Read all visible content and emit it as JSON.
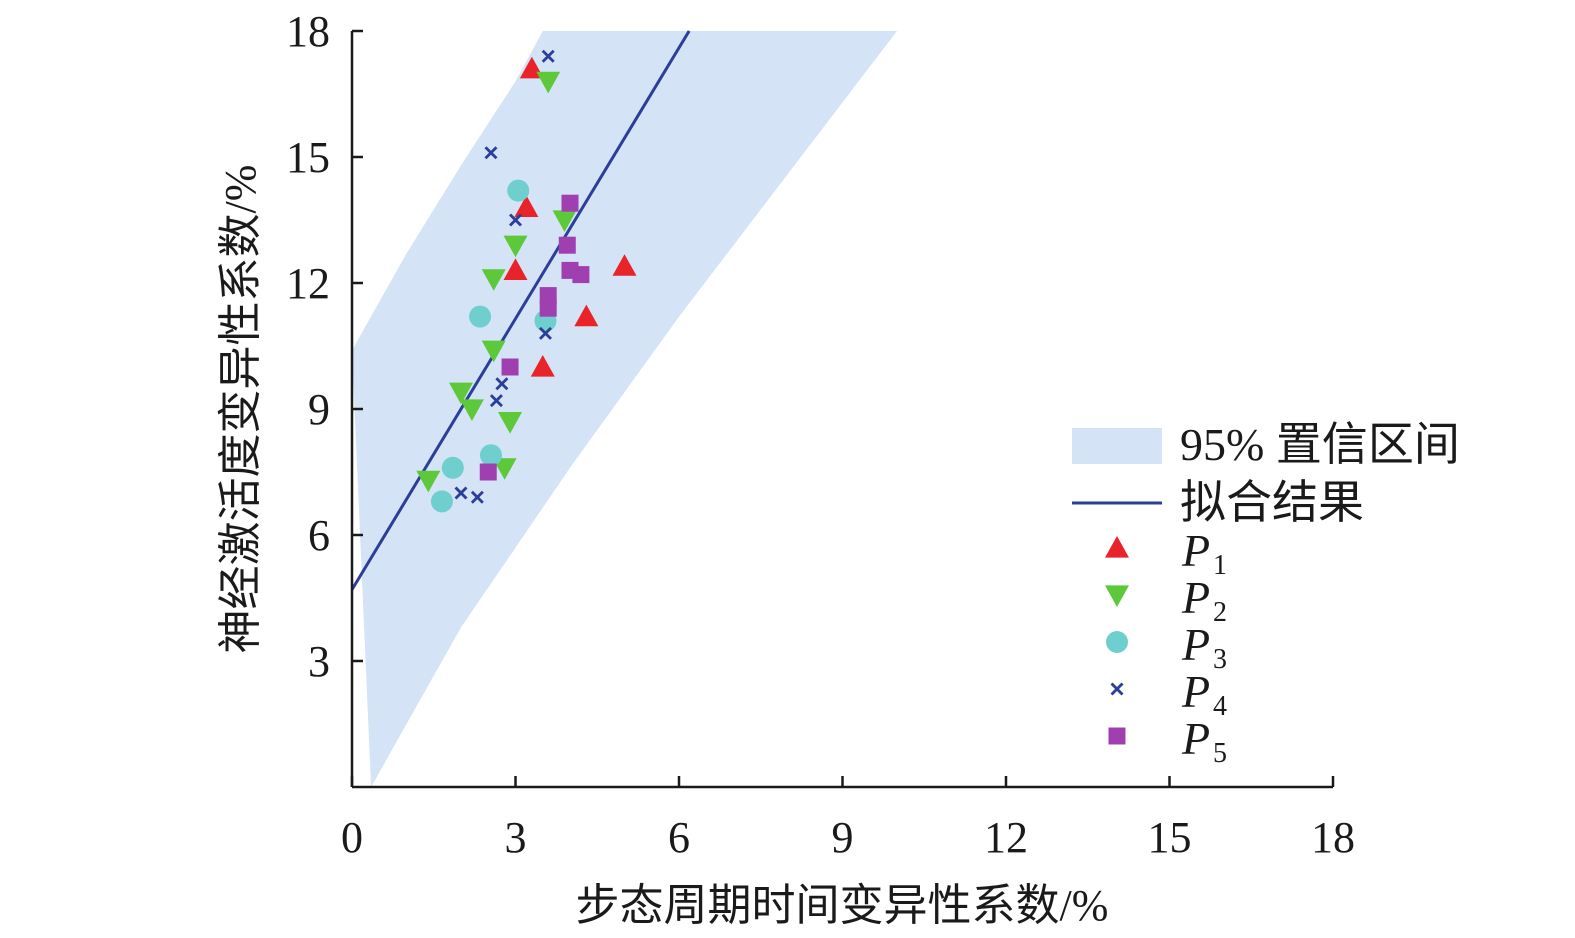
{
  "chart_data": {
    "type": "scatter",
    "xlabel": "步态周期时间变异性系数/%",
    "ylabel": "神经激活度变异性系数/%",
    "xlim": [
      0,
      18
    ],
    "ylim": [
      0,
      18
    ],
    "x_ticks": [
      0,
      3,
      6,
      9,
      12,
      15,
      18
    ],
    "y_ticks": [
      3,
      6,
      9,
      12,
      15,
      18
    ],
    "fit_line": {
      "label": "拟合结果",
      "slope": 2.15,
      "intercept": 4.7,
      "color": "#2b3f9a"
    },
    "confidence_band": {
      "label": "95% 置信区间",
      "color": "#d4e3f5",
      "upper": [
        [
          0,
          10.4
        ],
        [
          1,
          12.7
        ],
        [
          2,
          14.8
        ],
        [
          3,
          16.8
        ],
        [
          3.5,
          18
        ]
      ],
      "lower": [
        [
          0.35,
          0
        ],
        [
          1,
          1.5
        ],
        [
          2,
          3.8
        ],
        [
          3,
          5.7
        ],
        [
          4,
          7.6
        ],
        [
          5,
          9.4
        ],
        [
          6,
          11.2
        ],
        [
          7,
          12.9
        ],
        [
          8,
          14.6
        ],
        [
          9,
          16.3
        ],
        [
          10,
          18
        ]
      ]
    },
    "legend_position": "right",
    "series": [
      {
        "name": "P",
        "sub": "1",
        "marker": "triangle-up",
        "color": "#e8232a",
        "points": [
          [
            3.3,
            17.1
          ],
          [
            3.2,
            13.8
          ],
          [
            3.0,
            12.3
          ],
          [
            5.0,
            12.4
          ],
          [
            4.3,
            11.2
          ],
          [
            3.5,
            10.0
          ]
        ]
      },
      {
        "name": "P",
        "sub": "2",
        "marker": "triangle-down",
        "color": "#5cc83a",
        "points": [
          [
            3.6,
            16.8
          ],
          [
            3.9,
            13.5
          ],
          [
            3.0,
            12.9
          ],
          [
            2.6,
            12.1
          ],
          [
            2.6,
            10.4
          ],
          [
            2.0,
            9.4
          ],
          [
            2.2,
            9.0
          ],
          [
            2.9,
            8.7
          ],
          [
            2.8,
            7.6
          ],
          [
            1.4,
            7.3
          ]
        ]
      },
      {
        "name": "P",
        "sub": "3",
        "marker": "circle",
        "color": "#6fcfcf",
        "points": [
          [
            3.05,
            14.2
          ],
          [
            2.35,
            11.2
          ],
          [
            3.55,
            11.1
          ],
          [
            2.55,
            7.9
          ],
          [
            1.85,
            7.6
          ],
          [
            1.65,
            6.8
          ]
        ]
      },
      {
        "name": "P",
        "sub": "4",
        "marker": "x",
        "color": "#2b3f9a",
        "points": [
          [
            3.6,
            17.4
          ],
          [
            2.55,
            15.1
          ],
          [
            3.0,
            13.5
          ],
          [
            3.55,
            10.8
          ],
          [
            2.75,
            9.6
          ],
          [
            2.65,
            9.2
          ],
          [
            2.0,
            7.0
          ],
          [
            2.3,
            6.9
          ]
        ]
      },
      {
        "name": "P",
        "sub": "5",
        "marker": "square",
        "color": "#a040b0",
        "points": [
          [
            4.0,
            13.9
          ],
          [
            3.95,
            12.9
          ],
          [
            4.0,
            12.3
          ],
          [
            4.2,
            12.2
          ],
          [
            3.6,
            11.7
          ],
          [
            3.6,
            11.4
          ],
          [
            2.9,
            10.0
          ],
          [
            2.5,
            7.5
          ]
        ]
      }
    ]
  }
}
